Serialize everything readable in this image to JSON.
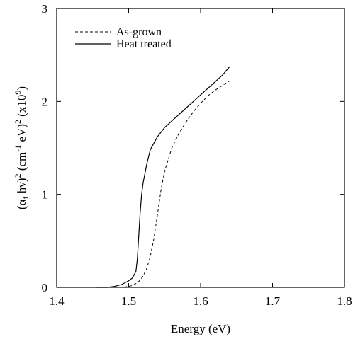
{
  "chart_data": {
    "type": "line",
    "xlabel": "Energy (eV)",
    "ylabel": {
      "open": "(α",
      "sub_f": "f",
      "hv": " hν)",
      "sup_2a": "2",
      "unit_open": " (cm",
      "sup_m1": "-1",
      "unit_ev": " eV)",
      "sup_2b": "2",
      "scale_open": " (x10",
      "sup_9": "9",
      "scale_close": ")"
    },
    "xlim": [
      1.4,
      1.8
    ],
    "ylim": [
      0,
      3
    ],
    "x_ticks": [
      1.4,
      1.5,
      1.6,
      1.7,
      1.8
    ],
    "x_tick_labels": [
      "1.4",
      "1.5",
      "1.6",
      "1.7",
      "1.8"
    ],
    "y_ticks": [
      0,
      1,
      2,
      3
    ],
    "y_tick_labels": [
      "0",
      "1",
      "2",
      "3"
    ],
    "grid": false,
    "legend_position": "top-left",
    "series": [
      {
        "name": "As-grown",
        "style": "dashed",
        "color": "#000000",
        "x": [
          1.48,
          1.49,
          1.5,
          1.505,
          1.51,
          1.515,
          1.52,
          1.525,
          1.53,
          1.535,
          1.54,
          1.545,
          1.55,
          1.56,
          1.57,
          1.58,
          1.59,
          1.6,
          1.61,
          1.62,
          1.63,
          1.64
        ],
        "y": [
          0.0,
          0.0,
          0.01,
          0.02,
          0.04,
          0.07,
          0.12,
          0.2,
          0.33,
          0.52,
          0.78,
          1.05,
          1.25,
          1.5,
          1.66,
          1.78,
          1.89,
          1.98,
          2.06,
          2.12,
          2.17,
          2.22
        ]
      },
      {
        "name": "Heat treated",
        "style": "solid",
        "color": "#000000",
        "x": [
          1.455,
          1.46,
          1.47,
          1.48,
          1.49,
          1.5,
          1.505,
          1.51,
          1.512,
          1.514,
          1.516,
          1.518,
          1.52,
          1.525,
          1.53,
          1.54,
          1.55,
          1.56,
          1.57,
          1.58,
          1.59,
          1.6,
          1.61,
          1.62,
          1.63,
          1.64
        ],
        "y": [
          0.0,
          0.0,
          0.0,
          0.01,
          0.03,
          0.07,
          0.1,
          0.17,
          0.3,
          0.55,
          0.8,
          1.0,
          1.12,
          1.32,
          1.48,
          1.62,
          1.72,
          1.79,
          1.86,
          1.93,
          2.0,
          2.07,
          2.14,
          2.21,
          2.28,
          2.37
        ]
      }
    ]
  }
}
